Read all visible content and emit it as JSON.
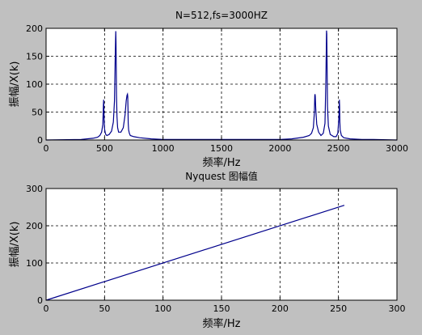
{
  "figure": {
    "background": "#c0c0c0",
    "axes_background": "#ffffff",
    "line_color": "#00008b"
  },
  "chart_data": [
    {
      "type": "line",
      "title": "N=512,fs=3000HZ",
      "xlabel": "频率/Hz",
      "ylabel": "振幅/X(k)",
      "xlim": [
        0,
        3000
      ],
      "ylim": [
        0,
        200
      ],
      "xticks": [
        "0",
        "500",
        "1000",
        "1500",
        "2000",
        "2500",
        "3000"
      ],
      "yticks": [
        "0",
        "50",
        "100",
        "150",
        "200"
      ],
      "grid": true,
      "series": [
        {
          "x": [
            0,
            300,
            400,
            440,
            460,
            475,
            485,
            490,
            492,
            494,
            496,
            500,
            506,
            510,
            520,
            540,
            560,
            575,
            585,
            592,
            596,
            598,
            600,
            602,
            606,
            612,
            620,
            640,
            660,
            675,
            685,
            692,
            696,
            698,
            700,
            702,
            706,
            712,
            720,
            750,
            800,
            900,
            1000,
            1200,
            1500,
            1800,
            2000,
            2100,
            2200,
            2250,
            2270,
            2285,
            2294,
            2298,
            2300,
            2302,
            2306,
            2314,
            2330,
            2350,
            2370,
            2385,
            2392,
            2396,
            2398,
            2400,
            2402,
            2406,
            2414,
            2430,
            2460,
            2480,
            2495,
            2505,
            2508,
            2510,
            2512,
            2515,
            2525,
            2545,
            2600,
            2700,
            2800,
            3000
          ],
          "values": [
            0,
            1,
            3,
            5,
            8,
            14,
            28,
            62,
            72,
            55,
            38,
            20,
            13,
            10,
            8,
            10,
            16,
            32,
            70,
            155,
            195,
            175,
            130,
            80,
            42,
            22,
            14,
            14,
            22,
            45,
            70,
            80,
            82,
            78,
            58,
            30,
            18,
            12,
            8,
            6,
            4,
            2,
            1,
            1,
            1,
            1,
            1,
            2,
            5,
            8,
            12,
            22,
            50,
            80,
            82,
            78,
            55,
            28,
            14,
            8,
            12,
            30,
            100,
            160,
            196,
            190,
            150,
            60,
            25,
            10,
            6,
            6,
            12,
            45,
            72,
            60,
            32,
            18,
            8,
            4,
            2,
            1,
            1,
            0
          ]
        }
      ]
    },
    {
      "type": "line",
      "title": "Nyquest 图幅值",
      "xlabel": "频率/Hz",
      "ylabel": "振幅/X(k)",
      "xlim": [
        0,
        300
      ],
      "ylim": [
        0,
        300
      ],
      "xticks": [
        "0",
        "50",
        "100",
        "150",
        "200",
        "250",
        "300"
      ],
      "yticks": [
        "0",
        "100",
        "200",
        "300"
      ],
      "grid": true,
      "series": [
        {
          "x": [
            0,
            255
          ],
          "values": [
            0,
            255
          ]
        }
      ]
    }
  ]
}
